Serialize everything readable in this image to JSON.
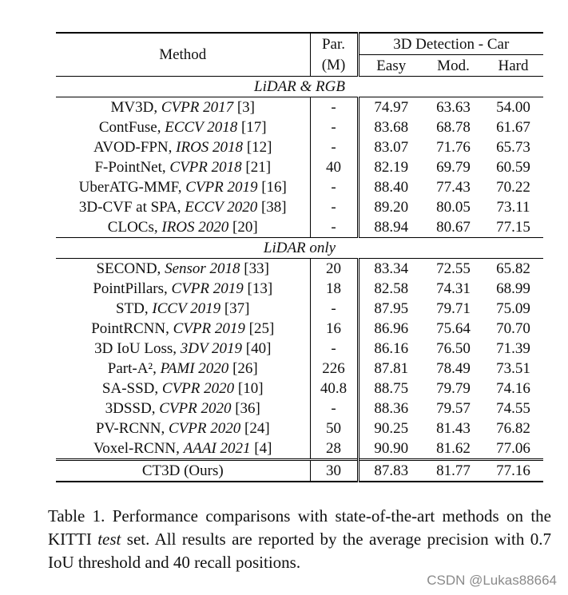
{
  "table": {
    "header": {
      "method": "Method",
      "par_line1": "Par.",
      "par_line2": "(M)",
      "group": "3D Detection - Car",
      "easy": "Easy",
      "mod": "Mod.",
      "hard": "Hard"
    },
    "sections": [
      {
        "title": "LiDAR & RGB",
        "rows": [
          {
            "name": "MV3D, ",
            "venue": "CVPR 2017",
            "ref": " [3]",
            "par": "-",
            "easy": "74.97",
            "mod": "63.63",
            "hard": "54.00"
          },
          {
            "name": "ContFuse, ",
            "venue": "ECCV 2018",
            "ref": " [17]",
            "par": "-",
            "easy": "83.68",
            "mod": "68.78",
            "hard": "61.67"
          },
          {
            "name": "AVOD-FPN, ",
            "venue": "IROS 2018",
            "ref": " [12]",
            "par": "-",
            "easy": "83.07",
            "mod": "71.76",
            "hard": "65.73"
          },
          {
            "name": "F-PointNet, ",
            "venue": "CVPR 2018",
            "ref": " [21]",
            "par": "40",
            "easy": "82.19",
            "mod": "69.79",
            "hard": "60.59"
          },
          {
            "name": "UberATG-MMF, ",
            "venue": "CVPR 2019",
            "ref": " [16]",
            "par": "-",
            "easy": "88.40",
            "mod": "77.43",
            "hard": "70.22"
          },
          {
            "name": "3D-CVF at SPA, ",
            "venue": "ECCV 2020",
            "ref": " [38]",
            "par": "-",
            "easy": "89.20",
            "mod": "80.05",
            "hard": "73.11"
          },
          {
            "name": "CLOCs, ",
            "venue": "IROS 2020",
            "ref": " [20]",
            "par": "-",
            "easy": "88.94",
            "mod": "80.67",
            "hard": "77.15"
          }
        ]
      },
      {
        "title": "LiDAR only",
        "rows": [
          {
            "name": "SECOND, ",
            "venue": "Sensor 2018",
            "ref": " [33]",
            "par": "20",
            "easy": "83.34",
            "mod": "72.55",
            "hard": "65.82"
          },
          {
            "name": "PointPillars, ",
            "venue": "CVPR 2019",
            "ref": " [13]",
            "par": "18",
            "easy": "82.58",
            "mod": "74.31",
            "hard": "68.99"
          },
          {
            "name": "STD, ",
            "venue": "ICCV 2019",
            "ref": " [37]",
            "par": "-",
            "easy": "87.95",
            "mod": "79.71",
            "hard": "75.09"
          },
          {
            "name": "PointRCNN, ",
            "venue": "CVPR 2019",
            "ref": " [25]",
            "par": "16",
            "easy": "86.96",
            "mod": "75.64",
            "hard": "70.70"
          },
          {
            "name": "3D IoU Loss, ",
            "venue": "3DV 2019",
            "ref": " [40]",
            "par": "-",
            "easy": "86.16",
            "mod": "76.50",
            "hard": "71.39"
          },
          {
            "name": "Part-A², ",
            "venue": "PAMI 2020",
            "ref": " [26]",
            "par": "226",
            "easy": "87.81",
            "mod": "78.49",
            "hard": "73.51"
          },
          {
            "name": "SA-SSD, ",
            "venue": "CVPR 2020",
            "ref": " [10]",
            "par": "40.8",
            "easy": "88.75",
            "mod": "79.79",
            "hard": "74.16"
          },
          {
            "name": "3DSSD, ",
            "venue": "CVPR 2020",
            "ref": " [36]",
            "par": "-",
            "easy": "88.36",
            "mod": "79.57",
            "hard": "74.55"
          },
          {
            "name": "PV-RCNN, ",
            "venue": "CVPR 2020",
            "ref": " [24]",
            "par": "50",
            "easy": "90.25",
            "mod": "81.43",
            "hard": "76.82"
          },
          {
            "name": "Voxel-RCNN, ",
            "venue": "AAAI 2021",
            "ref": " [4]",
            "par": "28",
            "easy": "90.90",
            "mod": "81.62",
            "hard": "77.06",
            "bold": [
              "easy"
            ]
          }
        ]
      }
    ],
    "ours": {
      "name": "CT3D (Ours)",
      "par": "30",
      "easy": "87.83",
      "mod": "81.77",
      "hard": "77.16",
      "bold": [
        "mod",
        "hard"
      ]
    }
  },
  "caption": {
    "prefix": "Table 1. Performance comparisons with state-of-the-art methods on the KITTI ",
    "emph": "test",
    "suffix": " set. All results are reported by the average precision with 0.7 IoU threshold and 40 recall positions."
  },
  "watermark": "CSDN @Lukas88664"
}
